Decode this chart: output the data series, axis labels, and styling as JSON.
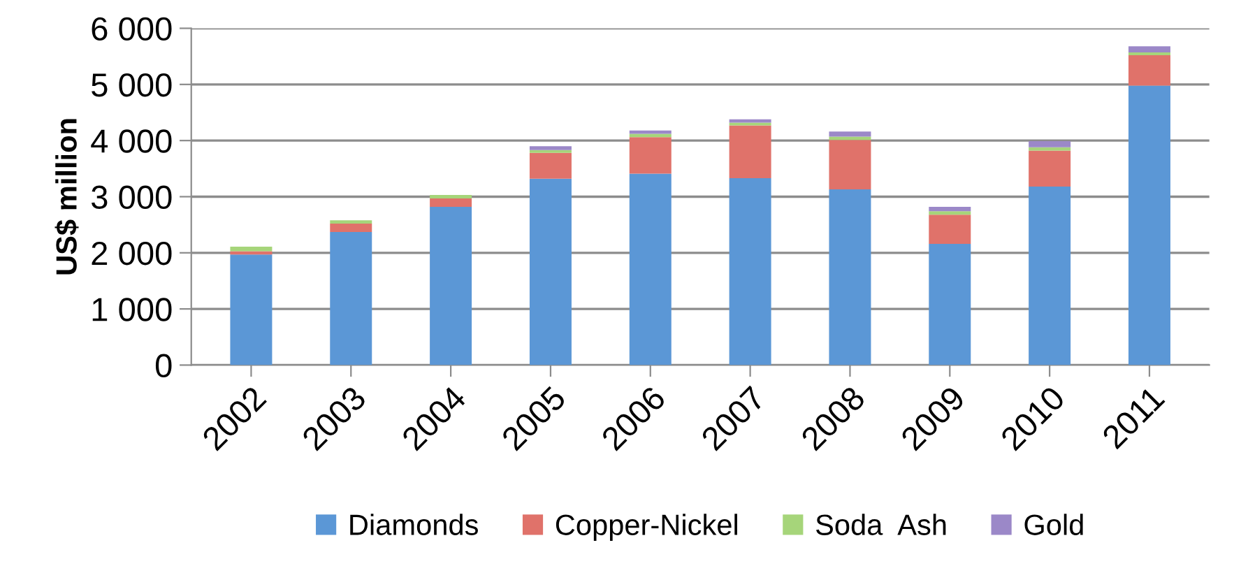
{
  "chart_data": {
    "type": "bar",
    "stacked": true,
    "ylabel": "US$ million",
    "categories": [
      "2002",
      "2003",
      "2004",
      "2005",
      "2006",
      "2007",
      "2008",
      "2009",
      "2010",
      "2011"
    ],
    "series": [
      {
        "name": "Diamonds",
        "color": "#5b97d6",
        "values": [
          1970,
          2370,
          2820,
          3320,
          3410,
          3330,
          3130,
          2160,
          3180,
          4980
        ]
      },
      {
        "name": "Copper-Nickel",
        "color": "#e0726a",
        "values": [
          60,
          150,
          150,
          460,
          650,
          940,
          880,
          520,
          640,
          540
        ]
      },
      {
        "name": "Soda  Ash",
        "color": "#a6d57a",
        "values": [
          80,
          60,
          60,
          50,
          60,
          50,
          60,
          60,
          60,
          50
        ]
      },
      {
        "name": "Gold",
        "color": "#9b88c8",
        "values": [
          0,
          0,
          0,
          70,
          60,
          60,
          90,
          80,
          110,
          110
        ]
      }
    ],
    "ylim": [
      0,
      6000
    ],
    "yticks": [
      0,
      {
        "value": 1000,
        "label": "1 000"
      },
      {
        "value": 2000,
        "label": "2 000"
      },
      {
        "value": 3000,
        "label": "3 000"
      },
      {
        "value": 4000,
        "label": "4 000"
      },
      {
        "value": 5000,
        "label": "5 000"
      },
      {
        "value": 6000,
        "label": "6 000"
      }
    ],
    "grid": "y",
    "legend": "bottom"
  }
}
